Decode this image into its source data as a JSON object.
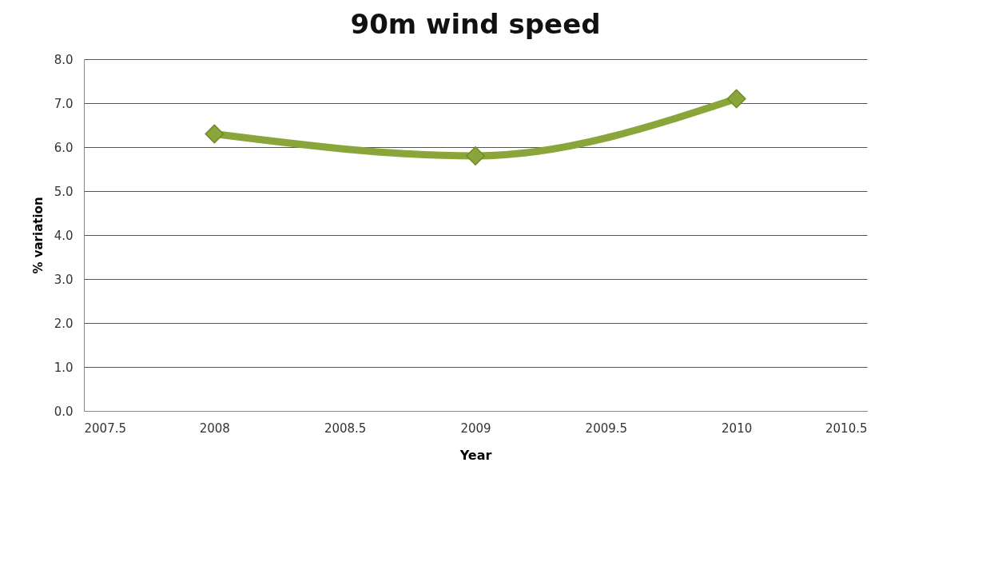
{
  "chart_data": {
    "type": "line",
    "title": "90m wind speed",
    "xlabel": "Year",
    "ylabel": "% variation",
    "x": [
      2008,
      2009,
      2010
    ],
    "series": [
      {
        "color": "#8aa63a",
        "values": [
          6.3,
          5.8,
          7.1
        ]
      }
    ],
    "xlim": [
      2007.5,
      2010.5
    ],
    "xticks": [
      2007.5,
      2008,
      2008.5,
      2009,
      2009.5,
      2010,
      2010.5
    ],
    "ylim": [
      0,
      8
    ],
    "yticks": [
      {
        "value": 0,
        "label": "0.0"
      },
      {
        "value": 1,
        "label": "1.0"
      },
      {
        "value": 2,
        "label": "2.0"
      },
      {
        "value": 3,
        "label": "3.0"
      },
      {
        "value": 4,
        "label": "4.0"
      },
      {
        "value": 5,
        "label": "5.0"
      },
      {
        "value": 6,
        "label": "6.0"
      },
      {
        "value": 7,
        "label": "7.0"
      },
      {
        "value": 8,
        "label": "8.0"
      }
    ],
    "grid": "y",
    "marker": "diamond",
    "line_style": "solid"
  }
}
